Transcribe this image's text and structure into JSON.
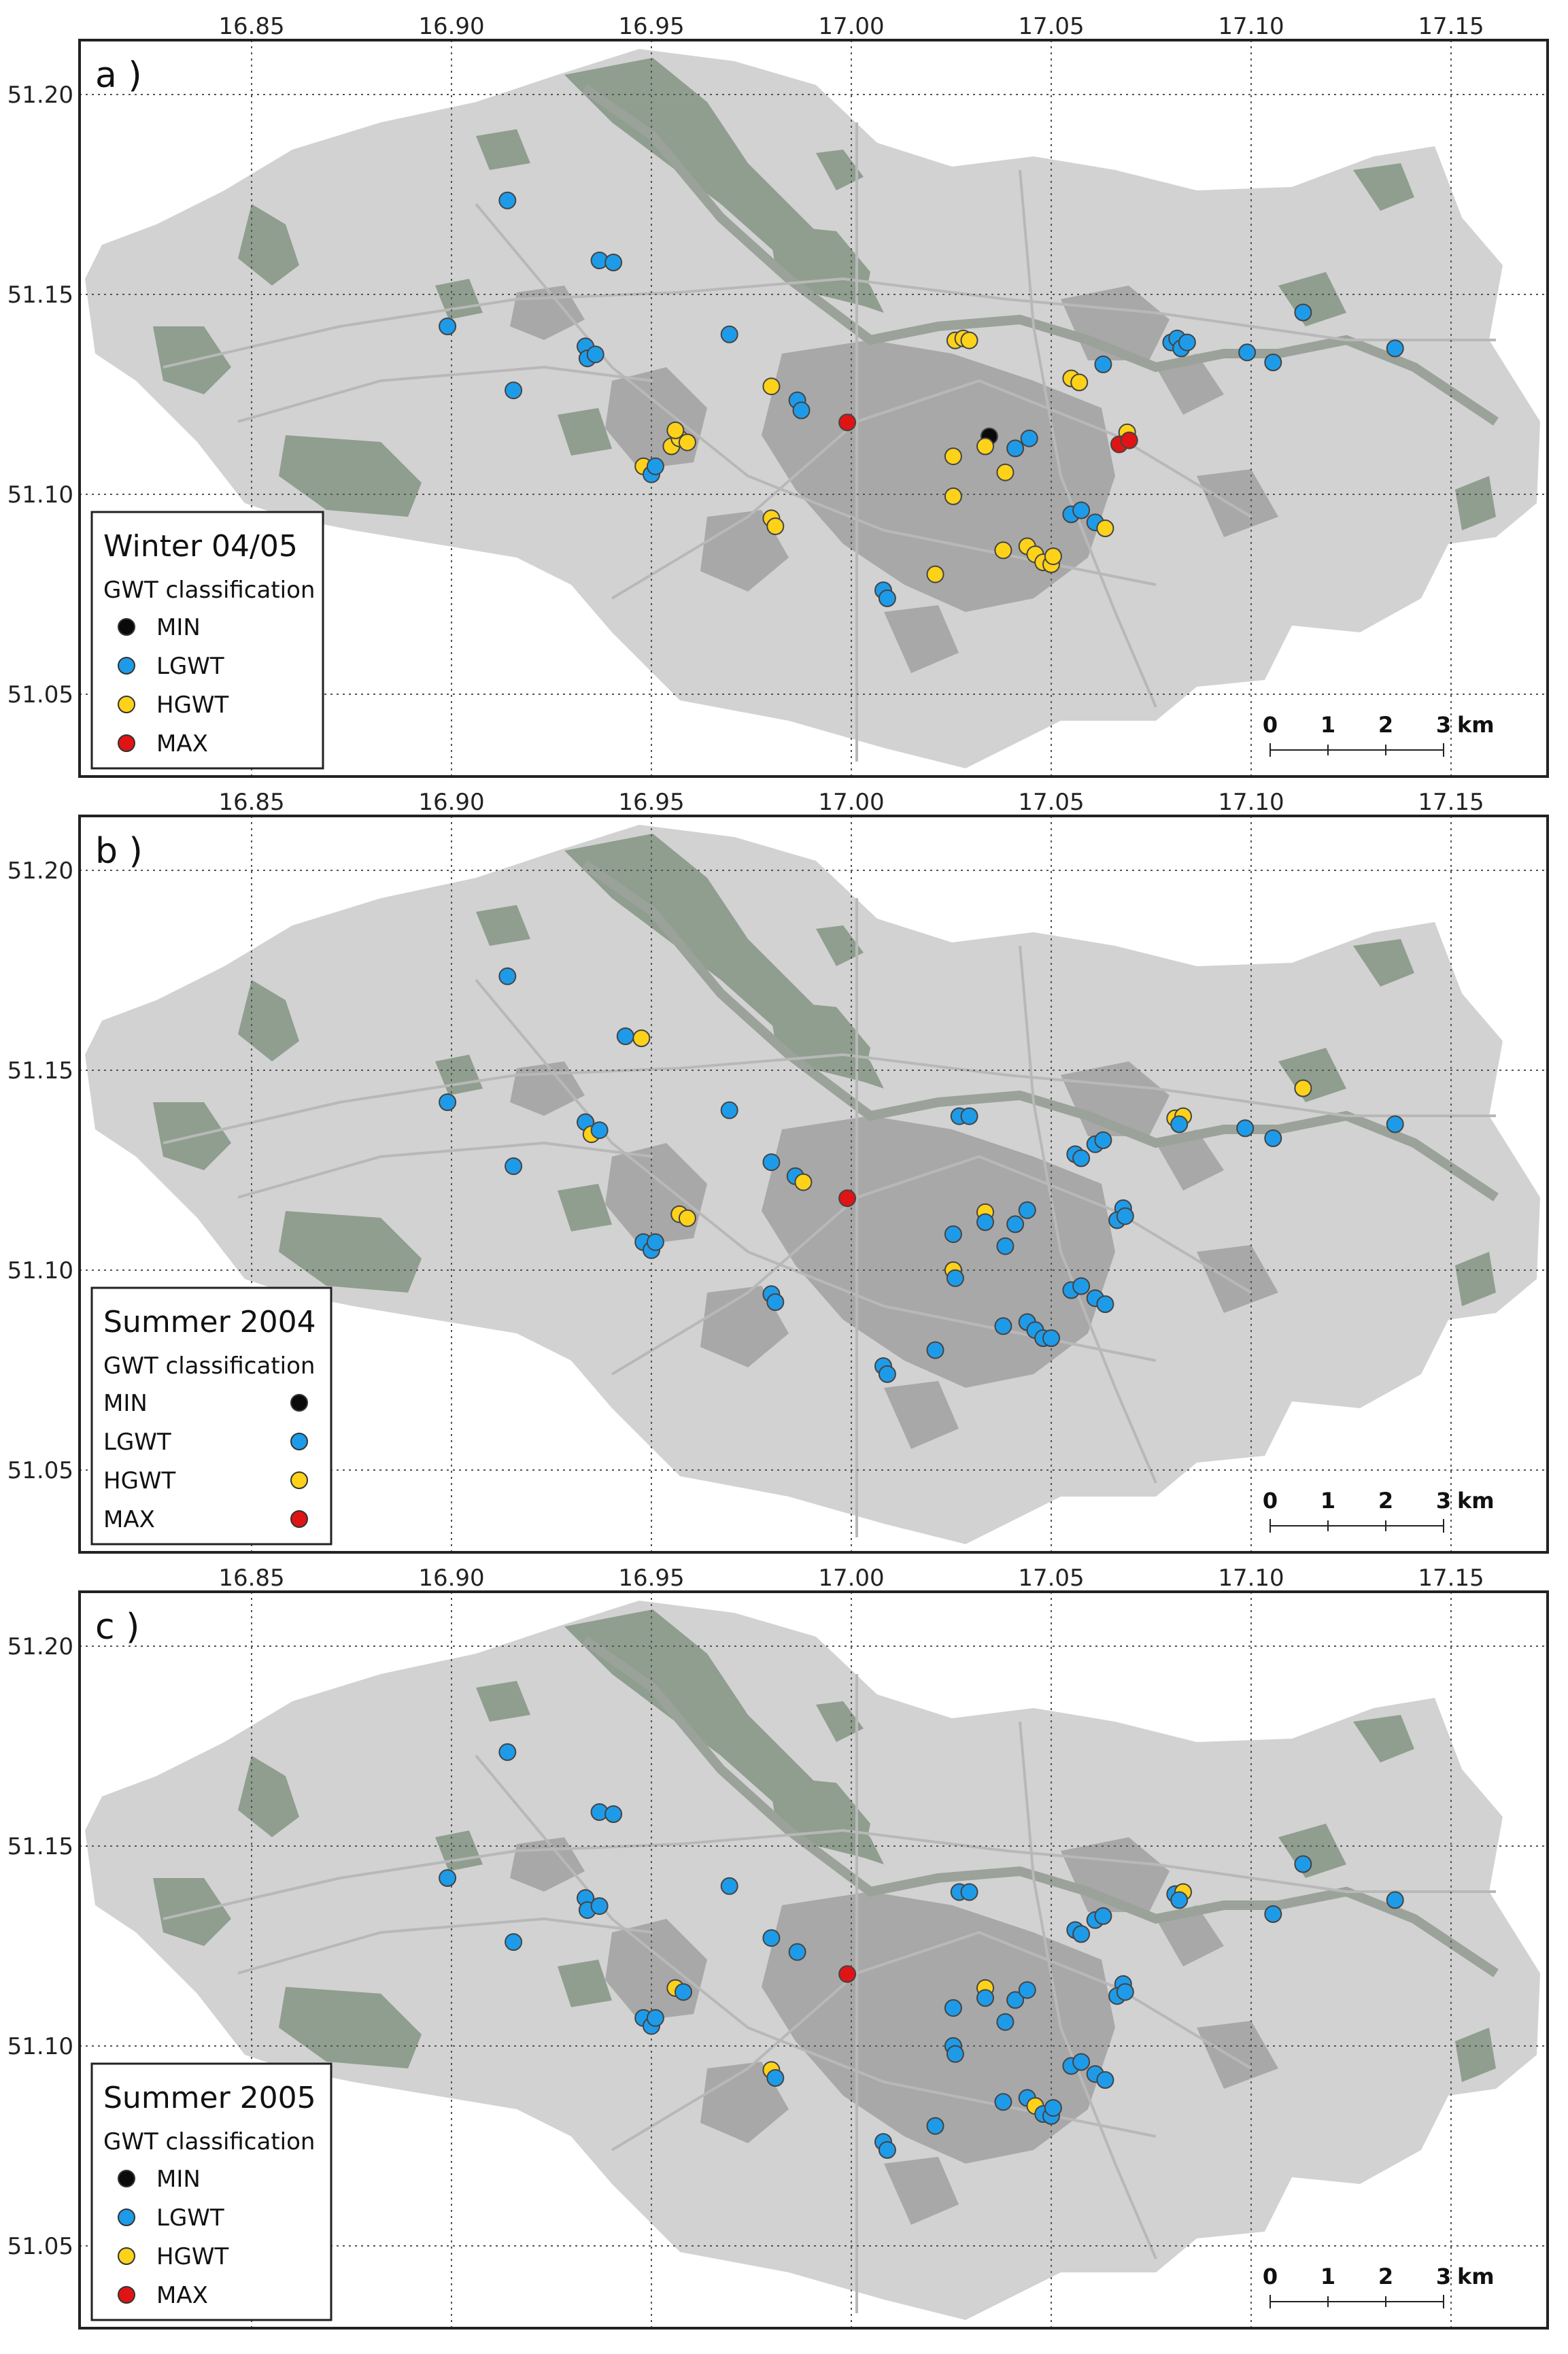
{
  "colors": {
    "MIN": "#0a0a0a",
    "LGWT": "#1e9be8",
    "HGWT": "#ffd21a",
    "MAX": "#e01414",
    "land": "#d2d2d2",
    "greenery": "#8f9e8f",
    "urban": "#a8a8a8",
    "river": "#9aa29a"
  },
  "axes": {
    "lon_ticks": [
      "16.85",
      "16.90",
      "16.95",
      "17.00",
      "17.05",
      "17.10",
      "17.15"
    ],
    "lat_ticks": [
      "51.20",
      "51.15",
      "51.10",
      "51.05"
    ]
  },
  "scale_bar": {
    "labels": [
      "0",
      "1",
      "2",
      "3"
    ],
    "unit": "km"
  },
  "panels": [
    {
      "label": "a )",
      "legend": {
        "title": "Winter 04/05",
        "subtitle": "GWT classification",
        "items": [
          {
            "key": "MIN",
            "label": "MIN"
          },
          {
            "key": "LGWT",
            "label": "LGWT"
          },
          {
            "key": "HGWT",
            "label": "HGWT"
          },
          {
            "key": "MAX",
            "label": "MAX"
          }
        ]
      },
      "points": [
        {
          "lon": 16.914,
          "lat": 51.1735,
          "cls": "LGWT"
        },
        {
          "lon": 16.937,
          "lat": 51.1585,
          "cls": "LGWT"
        },
        {
          "lon": 16.9405,
          "lat": 51.158,
          "cls": "LGWT"
        },
        {
          "lon": 16.899,
          "lat": 51.142,
          "cls": "LGWT"
        },
        {
          "lon": 16.9335,
          "lat": 51.137,
          "cls": "LGWT"
        },
        {
          "lon": 16.934,
          "lat": 51.134,
          "cls": "LGWT"
        },
        {
          "lon": 16.936,
          "lat": 51.135,
          "cls": "LGWT"
        },
        {
          "lon": 16.9155,
          "lat": 51.126,
          "cls": "LGWT"
        },
        {
          "lon": 16.9695,
          "lat": 51.14,
          "cls": "LGWT"
        },
        {
          "lon": 16.9865,
          "lat": 51.1235,
          "cls": "LGWT"
        },
        {
          "lon": 16.9875,
          "lat": 51.121,
          "cls": "LGWT"
        },
        {
          "lon": 16.98,
          "lat": 51.127,
          "cls": "HGWT"
        },
        {
          "lon": 16.999,
          "lat": 51.118,
          "cls": "MAX"
        },
        {
          "lon": 16.955,
          "lat": 51.112,
          "cls": "HGWT"
        },
        {
          "lon": 16.957,
          "lat": 51.114,
          "cls": "HGWT"
        },
        {
          "lon": 16.959,
          "lat": 51.113,
          "cls": "HGWT"
        },
        {
          "lon": 16.956,
          "lat": 51.116,
          "cls": "HGWT"
        },
        {
          "lon": 16.948,
          "lat": 51.107,
          "cls": "HGWT"
        },
        {
          "lon": 16.95,
          "lat": 51.105,
          "cls": "LGWT"
        },
        {
          "lon": 16.951,
          "lat": 51.107,
          "cls": "LGWT"
        },
        {
          "lon": 16.98,
          "lat": 51.094,
          "cls": "HGWT"
        },
        {
          "lon": 16.981,
          "lat": 51.092,
          "cls": "HGWT"
        },
        {
          "lon": 17.008,
          "lat": 51.076,
          "cls": "LGWT"
        },
        {
          "lon": 17.009,
          "lat": 51.074,
          "cls": "LGWT"
        },
        {
          "lon": 17.021,
          "lat": 51.08,
          "cls": "HGWT"
        },
        {
          "lon": 17.026,
          "lat": 51.1385,
          "cls": "HGWT"
        },
        {
          "lon": 17.028,
          "lat": 51.139,
          "cls": "HGWT"
        },
        {
          "lon": 17.0295,
          "lat": 51.1385,
          "cls": "HGWT"
        },
        {
          "lon": 17.0345,
          "lat": 51.1145,
          "cls": "MIN"
        },
        {
          "lon": 17.0335,
          "lat": 51.112,
          "cls": "HGWT"
        },
        {
          "lon": 17.0255,
          "lat": 51.1095,
          "cls": "HGWT"
        },
        {
          "lon": 17.041,
          "lat": 51.1115,
          "cls": "LGWT"
        },
        {
          "lon": 17.0445,
          "lat": 51.114,
          "cls": "LGWT"
        },
        {
          "lon": 17.0385,
          "lat": 51.1055,
          "cls": "HGWT"
        },
        {
          "lon": 17.0255,
          "lat": 51.0995,
          "cls": "HGWT"
        },
        {
          "lon": 17.038,
          "lat": 51.086,
          "cls": "HGWT"
        },
        {
          "lon": 17.044,
          "lat": 51.087,
          "cls": "HGWT"
        },
        {
          "lon": 17.046,
          "lat": 51.085,
          "cls": "HGWT"
        },
        {
          "lon": 17.048,
          "lat": 51.083,
          "cls": "HGWT"
        },
        {
          "lon": 17.05,
          "lat": 51.0825,
          "cls": "HGWT"
        },
        {
          "lon": 17.0505,
          "lat": 51.0845,
          "cls": "HGWT"
        },
        {
          "lon": 17.055,
          "lat": 51.129,
          "cls": "HGWT"
        },
        {
          "lon": 17.057,
          "lat": 51.128,
          "cls": "HGWT"
        },
        {
          "lon": 17.063,
          "lat": 51.1325,
          "cls": "LGWT"
        },
        {
          "lon": 17.055,
          "lat": 51.095,
          "cls": "LGWT"
        },
        {
          "lon": 17.0575,
          "lat": 51.096,
          "cls": "LGWT"
        },
        {
          "lon": 17.061,
          "lat": 51.093,
          "cls": "LGWT"
        },
        {
          "lon": 17.0635,
          "lat": 51.0915,
          "cls": "HGWT"
        },
        {
          "lon": 17.069,
          "lat": 51.1155,
          "cls": "HGWT"
        },
        {
          "lon": 17.067,
          "lat": 51.1125,
          "cls": "MAX"
        },
        {
          "lon": 17.0695,
          "lat": 51.1135,
          "cls": "MAX"
        },
        {
          "lon": 17.08,
          "lat": 51.138,
          "cls": "LGWT"
        },
        {
          "lon": 17.0815,
          "lat": 51.139,
          "cls": "LGWT"
        },
        {
          "lon": 17.0825,
          "lat": 51.1365,
          "cls": "LGWT"
        },
        {
          "lon": 17.084,
          "lat": 51.138,
          "cls": "LGWT"
        },
        {
          "lon": 17.099,
          "lat": 51.1355,
          "cls": "LGWT"
        },
        {
          "lon": 17.1055,
          "lat": 51.133,
          "cls": "LGWT"
        },
        {
          "lon": 17.113,
          "lat": 51.1455,
          "cls": "LGWT"
        },
        {
          "lon": 17.136,
          "lat": 51.1365,
          "cls": "LGWT"
        }
      ]
    },
    {
      "label": "b )",
      "legend": {
        "title": "Summer 2004",
        "subtitle": "GWT classification",
        "items": [
          {
            "key": "MIN",
            "label": "MIN"
          },
          {
            "key": "LGWT",
            "label": "LGWT"
          },
          {
            "key": "HGWT",
            "label": "HGWT"
          },
          {
            "key": "MAX",
            "label": "MAX"
          }
        ]
      },
      "points": [
        {
          "lon": 16.914,
          "lat": 51.1735,
          "cls": "LGWT"
        },
        {
          "lon": 16.9435,
          "lat": 51.1585,
          "cls": "LGWT"
        },
        {
          "lon": 16.9475,
          "lat": 51.158,
          "cls": "HGWT"
        },
        {
          "lon": 16.899,
          "lat": 51.142,
          "cls": "LGWT"
        },
        {
          "lon": 16.9335,
          "lat": 51.137,
          "cls": "LGWT"
        },
        {
          "lon": 16.935,
          "lat": 51.134,
          "cls": "HGWT"
        },
        {
          "lon": 16.937,
          "lat": 51.135,
          "cls": "LGWT"
        },
        {
          "lon": 16.9155,
          "lat": 51.126,
          "cls": "LGWT"
        },
        {
          "lon": 16.9695,
          "lat": 51.14,
          "cls": "LGWT"
        },
        {
          "lon": 16.98,
          "lat": 51.127,
          "cls": "LGWT"
        },
        {
          "lon": 16.986,
          "lat": 51.1235,
          "cls": "LGWT"
        },
        {
          "lon": 16.988,
          "lat": 51.122,
          "cls": "HGWT"
        },
        {
          "lon": 16.999,
          "lat": 51.118,
          "cls": "MAX"
        },
        {
          "lon": 16.957,
          "lat": 51.114,
          "cls": "HGWT"
        },
        {
          "lon": 16.959,
          "lat": 51.113,
          "cls": "HGWT"
        },
        {
          "lon": 16.948,
          "lat": 51.107,
          "cls": "LGWT"
        },
        {
          "lon": 16.95,
          "lat": 51.105,
          "cls": "LGWT"
        },
        {
          "lon": 16.951,
          "lat": 51.107,
          "cls": "LGWT"
        },
        {
          "lon": 16.98,
          "lat": 51.094,
          "cls": "LGWT"
        },
        {
          "lon": 16.981,
          "lat": 51.092,
          "cls": "LGWT"
        },
        {
          "lon": 17.008,
          "lat": 51.076,
          "cls": "LGWT"
        },
        {
          "lon": 17.009,
          "lat": 51.074,
          "cls": "LGWT"
        },
        {
          "lon": 17.021,
          "lat": 51.08,
          "cls": "LGWT"
        },
        {
          "lon": 17.027,
          "lat": 51.1385,
          "cls": "LGWT"
        },
        {
          "lon": 17.0295,
          "lat": 51.1385,
          "cls": "LGWT"
        },
        {
          "lon": 17.0335,
          "lat": 51.1145,
          "cls": "HGWT"
        },
        {
          "lon": 17.0335,
          "lat": 51.112,
          "cls": "LGWT"
        },
        {
          "lon": 17.0255,
          "lat": 51.109,
          "cls": "LGWT"
        },
        {
          "lon": 17.041,
          "lat": 51.1115,
          "cls": "LGWT"
        },
        {
          "lon": 17.044,
          "lat": 51.115,
          "cls": "LGWT"
        },
        {
          "lon": 17.0385,
          "lat": 51.106,
          "cls": "LGWT"
        },
        {
          "lon": 17.0255,
          "lat": 51.1,
          "cls": "HGWT"
        },
        {
          "lon": 17.026,
          "lat": 51.098,
          "cls": "LGWT"
        },
        {
          "lon": 17.038,
          "lat": 51.086,
          "cls": "LGWT"
        },
        {
          "lon": 17.044,
          "lat": 51.087,
          "cls": "LGWT"
        },
        {
          "lon": 17.046,
          "lat": 51.085,
          "cls": "LGWT"
        },
        {
          "lon": 17.048,
          "lat": 51.083,
          "cls": "LGWT"
        },
        {
          "lon": 17.05,
          "lat": 51.083,
          "cls": "LGWT"
        },
        {
          "lon": 17.056,
          "lat": 51.129,
          "cls": "LGWT"
        },
        {
          "lon": 17.0575,
          "lat": 51.128,
          "cls": "LGWT"
        },
        {
          "lon": 17.061,
          "lat": 51.1315,
          "cls": "LGWT"
        },
        {
          "lon": 17.063,
          "lat": 51.1325,
          "cls": "LGWT"
        },
        {
          "lon": 17.055,
          "lat": 51.095,
          "cls": "LGWT"
        },
        {
          "lon": 17.0575,
          "lat": 51.096,
          "cls": "LGWT"
        },
        {
          "lon": 17.061,
          "lat": 51.093,
          "cls": "LGWT"
        },
        {
          "lon": 17.0635,
          "lat": 51.0915,
          "cls": "LGWT"
        },
        {
          "lon": 17.068,
          "lat": 51.1155,
          "cls": "LGWT"
        },
        {
          "lon": 17.0665,
          "lat": 51.1125,
          "cls": "LGWT"
        },
        {
          "lon": 17.0685,
          "lat": 51.1135,
          "cls": "LGWT"
        },
        {
          "lon": 17.081,
          "lat": 51.138,
          "cls": "HGWT"
        },
        {
          "lon": 17.083,
          "lat": 51.1385,
          "cls": "HGWT"
        },
        {
          "lon": 17.082,
          "lat": 51.1365,
          "cls": "LGWT"
        },
        {
          "lon": 17.0985,
          "lat": 51.1355,
          "cls": "LGWT"
        },
        {
          "lon": 17.1055,
          "lat": 51.133,
          "cls": "LGWT"
        },
        {
          "lon": 17.113,
          "lat": 51.1455,
          "cls": "HGWT"
        },
        {
          "lon": 17.136,
          "lat": 51.1365,
          "cls": "LGWT"
        }
      ]
    },
    {
      "label": "c )",
      "legend": {
        "title": "Summer 2005",
        "subtitle": "GWT classification",
        "items": [
          {
            "key": "MIN",
            "label": "MIN"
          },
          {
            "key": "LGWT",
            "label": "LGWT"
          },
          {
            "key": "HGWT",
            "label": "HGWT"
          },
          {
            "key": "MAX",
            "label": "MAX"
          }
        ]
      },
      "points": [
        {
          "lon": 16.914,
          "lat": 51.1735,
          "cls": "LGWT"
        },
        {
          "lon": 16.937,
          "lat": 51.1585,
          "cls": "LGWT"
        },
        {
          "lon": 16.9405,
          "lat": 51.158,
          "cls": "LGWT"
        },
        {
          "lon": 16.899,
          "lat": 51.142,
          "cls": "LGWT"
        },
        {
          "lon": 16.9335,
          "lat": 51.137,
          "cls": "LGWT"
        },
        {
          "lon": 16.934,
          "lat": 51.134,
          "cls": "LGWT"
        },
        {
          "lon": 16.937,
          "lat": 51.135,
          "cls": "LGWT"
        },
        {
          "lon": 16.9155,
          "lat": 51.126,
          "cls": "LGWT"
        },
        {
          "lon": 16.9695,
          "lat": 51.14,
          "cls": "LGWT"
        },
        {
          "lon": 16.98,
          "lat": 51.127,
          "cls": "LGWT"
        },
        {
          "lon": 16.9865,
          "lat": 51.1235,
          "cls": "LGWT"
        },
        {
          "lon": 16.999,
          "lat": 51.118,
          "cls": "MAX"
        },
        {
          "lon": 16.956,
          "lat": 51.1145,
          "cls": "HGWT"
        },
        {
          "lon": 16.958,
          "lat": 51.1135,
          "cls": "LGWT"
        },
        {
          "lon": 16.948,
          "lat": 51.107,
          "cls": "LGWT"
        },
        {
          "lon": 16.95,
          "lat": 51.105,
          "cls": "LGWT"
        },
        {
          "lon": 16.951,
          "lat": 51.107,
          "cls": "LGWT"
        },
        {
          "lon": 16.98,
          "lat": 51.094,
          "cls": "HGWT"
        },
        {
          "lon": 16.981,
          "lat": 51.092,
          "cls": "LGWT"
        },
        {
          "lon": 17.008,
          "lat": 51.076,
          "cls": "LGWT"
        },
        {
          "lon": 17.009,
          "lat": 51.074,
          "cls": "LGWT"
        },
        {
          "lon": 17.021,
          "lat": 51.08,
          "cls": "LGWT"
        },
        {
          "lon": 17.027,
          "lat": 51.1385,
          "cls": "LGWT"
        },
        {
          "lon": 17.0295,
          "lat": 51.1385,
          "cls": "LGWT"
        },
        {
          "lon": 17.0335,
          "lat": 51.1145,
          "cls": "HGWT"
        },
        {
          "lon": 17.0335,
          "lat": 51.112,
          "cls": "LGWT"
        },
        {
          "lon": 17.0255,
          "lat": 51.1095,
          "cls": "LGWT"
        },
        {
          "lon": 17.041,
          "lat": 51.1115,
          "cls": "LGWT"
        },
        {
          "lon": 17.044,
          "lat": 51.114,
          "cls": "LGWT"
        },
        {
          "lon": 17.0385,
          "lat": 51.106,
          "cls": "LGWT"
        },
        {
          "lon": 17.0255,
          "lat": 51.1,
          "cls": "LGWT"
        },
        {
          "lon": 17.026,
          "lat": 51.098,
          "cls": "LGWT"
        },
        {
          "lon": 17.038,
          "lat": 51.086,
          "cls": "LGWT"
        },
        {
          "lon": 17.044,
          "lat": 51.087,
          "cls": "LGWT"
        },
        {
          "lon": 17.046,
          "lat": 51.085,
          "cls": "HGWT"
        },
        {
          "lon": 17.048,
          "lat": 51.083,
          "cls": "LGWT"
        },
        {
          "lon": 17.05,
          "lat": 51.0825,
          "cls": "LGWT"
        },
        {
          "lon": 17.0505,
          "lat": 51.0845,
          "cls": "LGWT"
        },
        {
          "lon": 17.056,
          "lat": 51.129,
          "cls": "LGWT"
        },
        {
          "lon": 17.0575,
          "lat": 51.128,
          "cls": "LGWT"
        },
        {
          "lon": 17.061,
          "lat": 51.1315,
          "cls": "LGWT"
        },
        {
          "lon": 17.063,
          "lat": 51.1325,
          "cls": "LGWT"
        },
        {
          "lon": 17.055,
          "lat": 51.095,
          "cls": "LGWT"
        },
        {
          "lon": 17.0575,
          "lat": 51.096,
          "cls": "LGWT"
        },
        {
          "lon": 17.061,
          "lat": 51.093,
          "cls": "LGWT"
        },
        {
          "lon": 17.0635,
          "lat": 51.0915,
          "cls": "LGWT"
        },
        {
          "lon": 17.068,
          "lat": 51.1155,
          "cls": "LGWT"
        },
        {
          "lon": 17.0665,
          "lat": 51.1125,
          "cls": "LGWT"
        },
        {
          "lon": 17.0685,
          "lat": 51.1135,
          "cls": "LGWT"
        },
        {
          "lon": 17.081,
          "lat": 51.138,
          "cls": "LGWT"
        },
        {
          "lon": 17.083,
          "lat": 51.1385,
          "cls": "HGWT"
        },
        {
          "lon": 17.082,
          "lat": 51.1365,
          "cls": "LGWT"
        },
        {
          "lon": 17.1055,
          "lat": 51.133,
          "cls": "LGWT"
        },
        {
          "lon": 17.113,
          "lat": 51.1455,
          "cls": "LGWT"
        },
        {
          "lon": 17.136,
          "lat": 51.1365,
          "cls": "LGWT"
        }
      ]
    }
  ]
}
